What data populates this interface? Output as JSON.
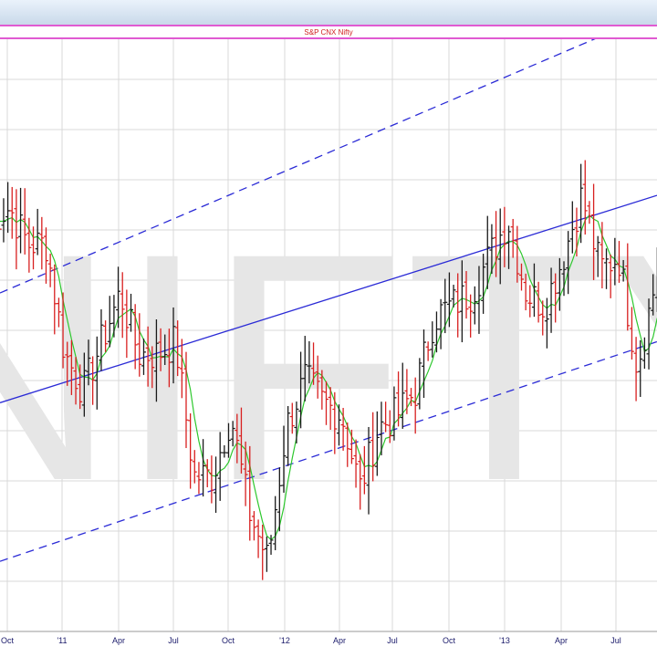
{
  "chart_title": "S&P CNX Nifty",
  "watermark": "NIFTY",
  "colors": {
    "up_bar": "#1a1a1a",
    "down_bar": "#d81f1f",
    "moving_average": "#2ec82e",
    "channel": "#2b2bd6",
    "gridline": "#d8d8d8",
    "watermark": "#e6e6e6",
    "title_border": "#e05ad2",
    "title_text": "#d02020"
  },
  "chart_data": {
    "type": "ohlc-bar",
    "title": "S&P CNX Nifty",
    "xlabel": "",
    "ylabel": "",
    "frequency": "weekly",
    "grid": true,
    "legend": "none",
    "x_ticks": [
      "Oct",
      "'11",
      "Apr",
      "Jul",
      "Oct",
      "'12",
      "Apr",
      "Jul",
      "Oct",
      "'13",
      "Apr",
      "Jul"
    ],
    "y_range_approx": [
      4400,
      6700
    ],
    "price_series_approx": [
      {
        "period": "2010-09",
        "close": 6050
      },
      {
        "period": "2010-10",
        "close": 6100
      },
      {
        "period": "2010-11",
        "close": 5950
      },
      {
        "period": "2010-12",
        "close": 5950
      },
      {
        "period": "2011-01",
        "close": 5500
      },
      {
        "period": "2011-02",
        "close": 5350
      },
      {
        "period": "2011-03",
        "close": 5550
      },
      {
        "period": "2011-04",
        "close": 5750
      },
      {
        "period": "2011-05",
        "close": 5500
      },
      {
        "period": "2011-06",
        "close": 5500
      },
      {
        "period": "2011-07",
        "close": 5550
      },
      {
        "period": "2011-08",
        "close": 5000
      },
      {
        "period": "2011-09",
        "close": 5000
      },
      {
        "period": "2011-10",
        "close": 5250
      },
      {
        "period": "2011-11",
        "close": 4850
      },
      {
        "period": "2011-12",
        "close": 4650
      },
      {
        "period": "2012-01",
        "close": 5200
      },
      {
        "period": "2012-02",
        "close": 5400
      },
      {
        "period": "2012-03",
        "close": 5300
      },
      {
        "period": "2012-04",
        "close": 5250
      },
      {
        "period": "2012-05",
        "close": 4950
      },
      {
        "period": "2012-06",
        "close": 5200
      },
      {
        "period": "2012-07",
        "close": 5250
      },
      {
        "period": "2012-08",
        "close": 5350
      },
      {
        "period": "2012-09",
        "close": 5650
      },
      {
        "period": "2012-10",
        "close": 5700
      },
      {
        "period": "2012-11",
        "close": 5750
      },
      {
        "period": "2012-12",
        "close": 5900
      },
      {
        "period": "2013-01",
        "close": 6050
      },
      {
        "period": "2013-02",
        "close": 5750
      },
      {
        "period": "2013-03",
        "close": 5700
      },
      {
        "period": "2013-04",
        "close": 5900
      },
      {
        "period": "2013-05",
        "close": 6150
      },
      {
        "period": "2013-06",
        "close": 5850
      },
      {
        "period": "2013-07",
        "close": 5900
      },
      {
        "period": "2013-08",
        "close": 5450
      },
      {
        "period": "2013-09",
        "close": 5800
      }
    ],
    "overlays": [
      {
        "kind": "moving-average",
        "color": "#2ec82e"
      },
      {
        "kind": "channel-middle",
        "style": "solid",
        "color": "#2b2bd6",
        "start": 5300,
        "end": 6150
      },
      {
        "kind": "channel-upper",
        "style": "dashed",
        "color": "#2b2bd6",
        "start": 5750,
        "end": 6900
      },
      {
        "kind": "channel-lower",
        "style": "dashed",
        "color": "#2b2bd6",
        "start": 4650,
        "end": 5550
      }
    ]
  }
}
